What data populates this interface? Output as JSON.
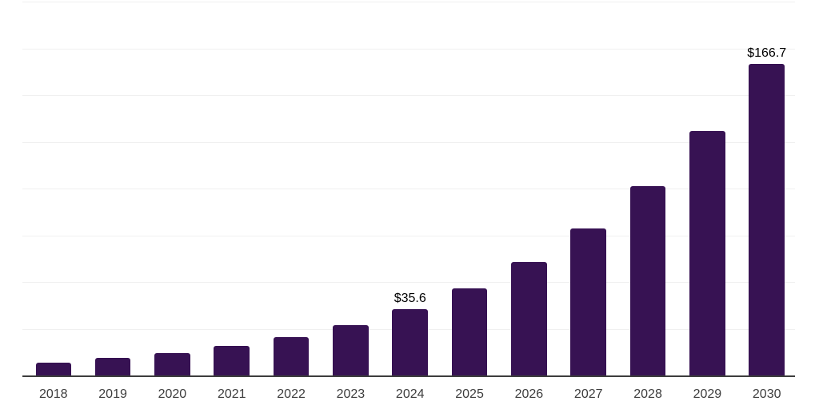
{
  "chart_data": {
    "type": "bar",
    "title": "",
    "xlabel": "",
    "ylabel": "",
    "categories": [
      "2018",
      "2019",
      "2020",
      "2021",
      "2022",
      "2023",
      "2024",
      "2025",
      "2026",
      "2027",
      "2028",
      "2029",
      "2030"
    ],
    "values": [
      7.0,
      9.3,
      11.8,
      16.0,
      20.7,
      26.9,
      35.6,
      46.8,
      60.6,
      78.7,
      101.5,
      130.9,
      166.7
    ],
    "data_labels": {
      "2024": "$35.6",
      "2030": "$166.7"
    },
    "ylim": [
      0,
      200
    ],
    "gridline_step": 25,
    "grid": "horizontal-only",
    "legend": "none",
    "y_tick_labels_visible": false,
    "colors": {
      "bar": "#371253",
      "value_label": "#000000",
      "tick_label": "#3d3d3d",
      "gridline": "#f0f0f0",
      "axis_line": "#3d3d3d",
      "background": "#ffffff"
    }
  }
}
